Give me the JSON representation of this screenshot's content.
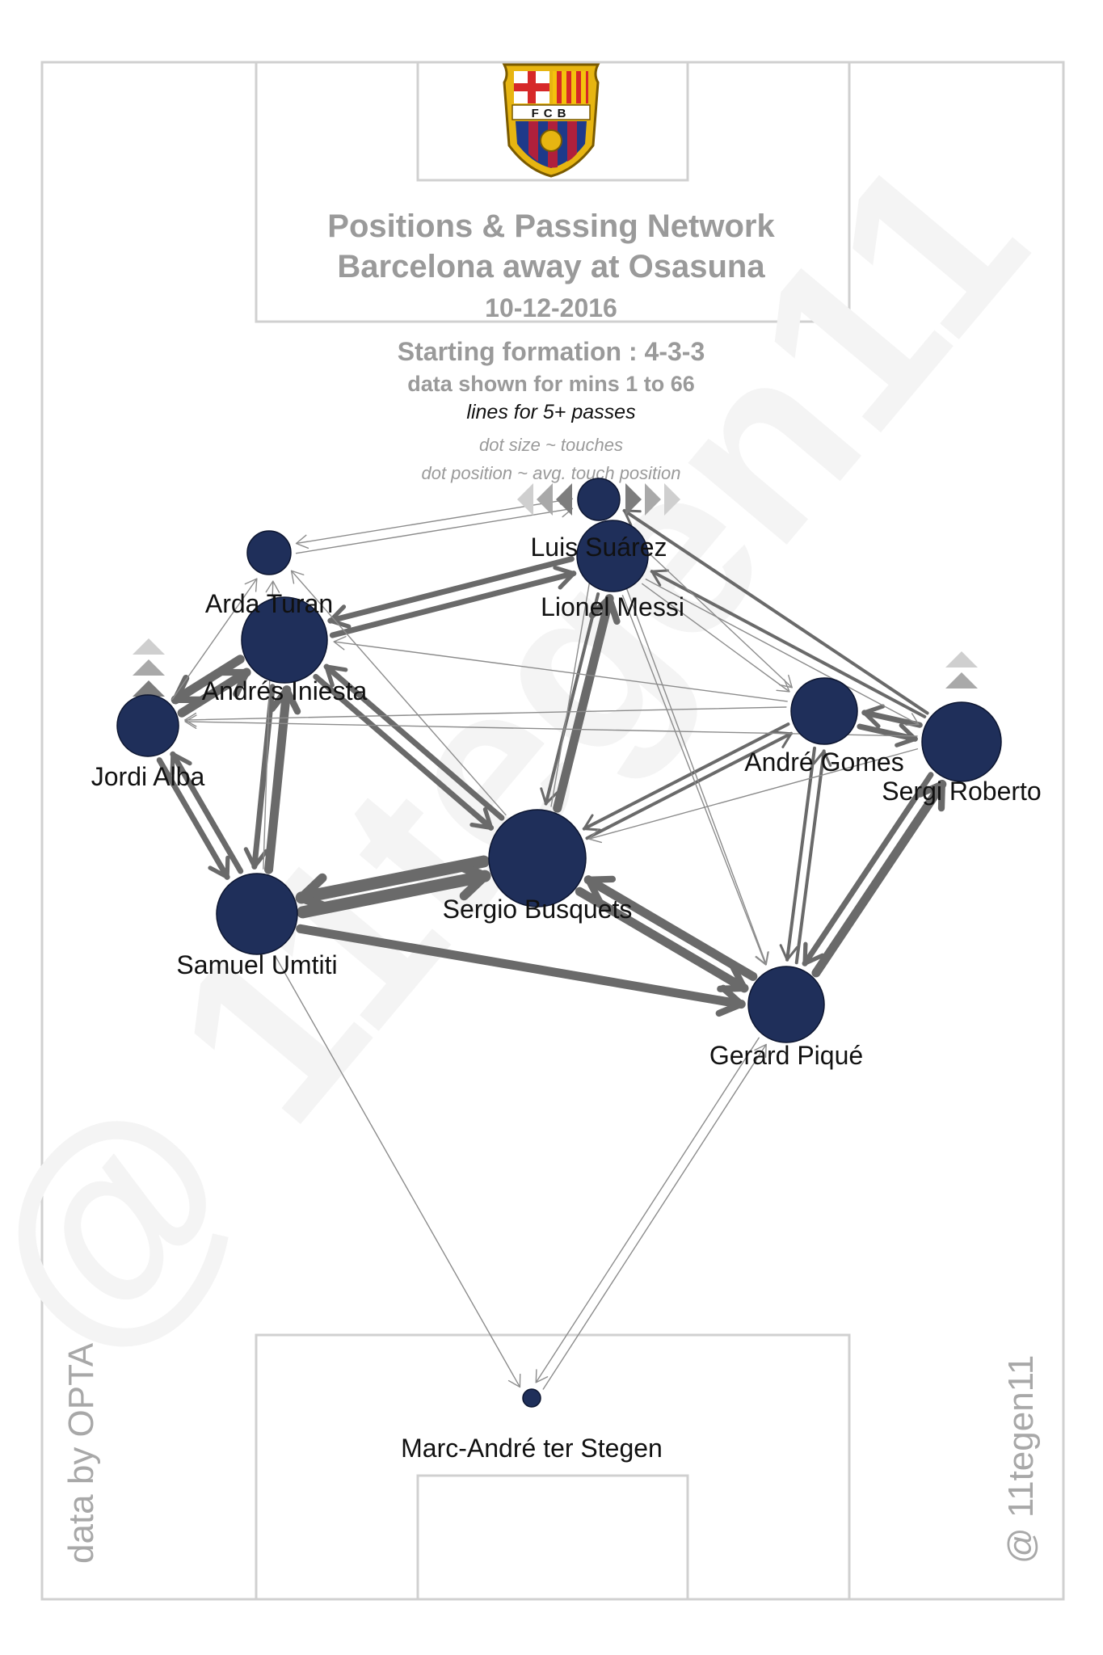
{
  "header": {
    "crest_letters": "FCB",
    "title_line1": "Positions & Passing Network",
    "title_line2": "Barcelona  away at  Osasuna",
    "date": "10-12-2016",
    "formation": "Starting formation : 4-3-3",
    "minutes": "data shown for mins 1 to 66",
    "lines_note": "lines for 5+ passes",
    "dot_size_note": "dot size ~ touches",
    "dot_position_note": "dot position ~ avg. touch position"
  },
  "footer": {
    "source": "data by OPTA",
    "author": "@ 11tegen11"
  },
  "colors": {
    "node": "#1f2f5a",
    "edge": "#6a6a6a",
    "pitch_lines": "#d0d0d0",
    "title": "#9a9a9a"
  },
  "players": [
    {
      "id": "suarez",
      "name": "Luis Suárez",
      "touches": "small"
    },
    {
      "id": "messi",
      "name": "Lionel Messi",
      "touches": "medium"
    },
    {
      "id": "turan",
      "name": "Arda Turan",
      "touches": "small"
    },
    {
      "id": "iniesta",
      "name": "Andrés Iniesta",
      "touches": "large"
    },
    {
      "id": "alba",
      "name": "Jordi Alba",
      "touches": "medium"
    },
    {
      "id": "gomes",
      "name": "André Gomes",
      "touches": "medium"
    },
    {
      "id": "roberto",
      "name": "Sergi Roberto",
      "touches": "large"
    },
    {
      "id": "busquets",
      "name": "Sergio Busquets",
      "touches": "largest"
    },
    {
      "id": "umtiti",
      "name": "Samuel Umtiti",
      "touches": "large"
    },
    {
      "id": "pique",
      "name": "Gerard Piqué",
      "touches": "large"
    },
    {
      "id": "terstegen",
      "name": "Marc-André ter Stegen",
      "touches": "tiny"
    }
  ],
  "passes": [
    {
      "from": "busquets",
      "to": "umtiti",
      "strength": 5
    },
    {
      "from": "umtiti",
      "to": "busquets",
      "strength": 5
    },
    {
      "from": "busquets",
      "to": "pique",
      "strength": 4
    },
    {
      "from": "pique",
      "to": "busquets",
      "strength": 4
    },
    {
      "from": "umtiti",
      "to": "pique",
      "strength": 4
    },
    {
      "from": "umtiti",
      "to": "iniesta",
      "strength": 4
    },
    {
      "from": "iniesta",
      "to": "umtiti",
      "strength": 3
    },
    {
      "from": "busquets",
      "to": "iniesta",
      "strength": 3
    },
    {
      "from": "iniesta",
      "to": "busquets",
      "strength": 3
    },
    {
      "from": "busquets",
      "to": "messi",
      "strength": 4
    },
    {
      "from": "messi",
      "to": "busquets",
      "strength": 2
    },
    {
      "from": "iniesta",
      "to": "alba",
      "strength": 4
    },
    {
      "from": "alba",
      "to": "iniesta",
      "strength": 4
    },
    {
      "from": "umtiti",
      "to": "alba",
      "strength": 3
    },
    {
      "from": "alba",
      "to": "umtiti",
      "strength": 3
    },
    {
      "from": "messi",
      "to": "iniesta",
      "strength": 3
    },
    {
      "from": "iniesta",
      "to": "messi",
      "strength": 3
    },
    {
      "from": "pique",
      "to": "roberto",
      "strength": 4
    },
    {
      "from": "roberto",
      "to": "pique",
      "strength": 3
    },
    {
      "from": "gomes",
      "to": "roberto",
      "strength": 3
    },
    {
      "from": "roberto",
      "to": "gomes",
      "strength": 3
    },
    {
      "from": "pique",
      "to": "gomes",
      "strength": 2
    },
    {
      "from": "gomes",
      "to": "pique",
      "strength": 2
    },
    {
      "from": "gomes",
      "to": "busquets",
      "strength": 2
    },
    {
      "from": "busquets",
      "to": "gomes",
      "strength": 2
    },
    {
      "from": "roberto",
      "to": "messi",
      "strength": 2
    },
    {
      "from": "messi",
      "to": "roberto",
      "strength": 1
    },
    {
      "from": "roberto",
      "to": "suarez",
      "strength": 2
    },
    {
      "from": "busquets",
      "to": "suarez",
      "strength": 1
    },
    {
      "from": "gomes",
      "to": "iniesta",
      "strength": 1
    },
    {
      "from": "roberto",
      "to": "busquets",
      "strength": 1
    },
    {
      "from": "umtiti",
      "to": "turan",
      "strength": 1
    },
    {
      "from": "alba",
      "to": "turan",
      "strength": 1
    },
    {
      "from": "busquets",
      "to": "turan",
      "strength": 1
    },
    {
      "from": "turan",
      "to": "suarez",
      "strength": 1
    },
    {
      "from": "suarez",
      "to": "turan",
      "strength": 1
    },
    {
      "from": "gomes",
      "to": "alba",
      "strength": 1
    },
    {
      "from": "roberto",
      "to": "alba",
      "strength": 1
    },
    {
      "from": "messi",
      "to": "gomes",
      "strength": 1
    },
    {
      "from": "suarez",
      "to": "gomes",
      "strength": 1
    },
    {
      "from": "messi",
      "to": "pique",
      "strength": 1
    },
    {
      "from": "suarez",
      "to": "pique",
      "strength": 1
    },
    {
      "from": "umtiti",
      "to": "terstegen",
      "strength": 1
    },
    {
      "from": "terstegen",
      "to": "pique",
      "strength": 1
    },
    {
      "from": "pique",
      "to": "terstegen",
      "strength": 1
    }
  ]
}
